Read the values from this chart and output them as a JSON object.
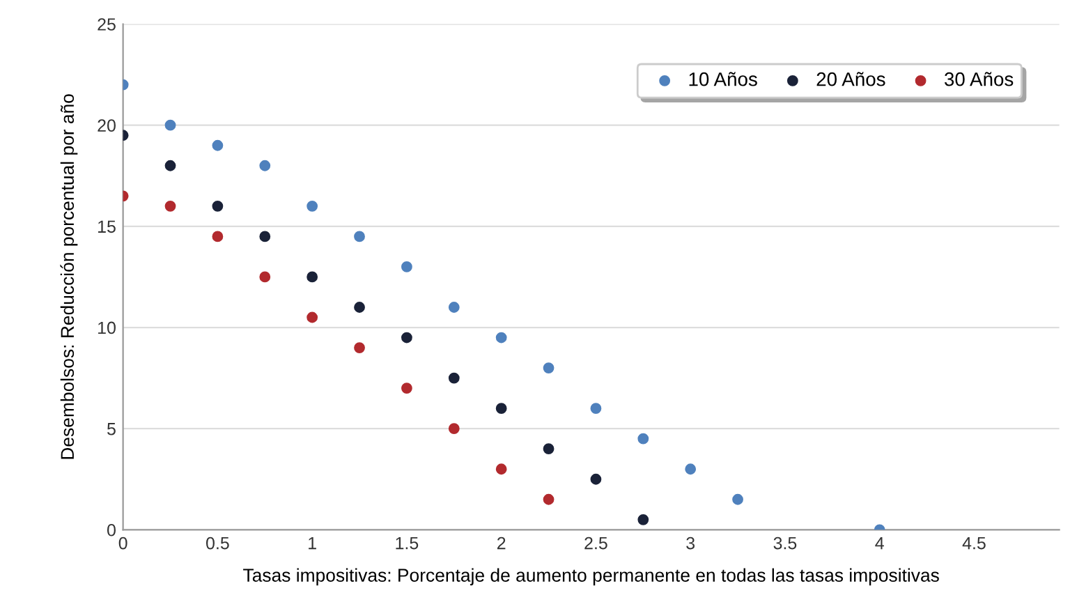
{
  "chart_data": {
    "type": "scatter",
    "xlabel": "Tasas impositivas: Porcentaje de aumento permanente en todas las tasas impositivas",
    "ylabel": "Desembolsos: Reducción porcentual por año",
    "series": [
      {
        "name": "10 Años",
        "color": "#4f81bd",
        "x": [
          0,
          0.25,
          0.5,
          0.75,
          1,
          1.25,
          1.5,
          1.75,
          2,
          2.25,
          2.5,
          2.75,
          3,
          3.25,
          4
        ],
        "values": [
          22,
          20,
          19,
          18,
          16,
          14.5,
          13,
          11,
          9.5,
          8,
          6,
          4.5,
          3,
          1.5,
          0
        ]
      },
      {
        "name": "20 Años",
        "color": "#1a2238",
        "x": [
          0,
          0.25,
          0.5,
          0.75,
          1,
          1.25,
          1.5,
          1.75,
          2,
          2.25,
          2.5,
          2.75
        ],
        "values": [
          19.5,
          18,
          16,
          14.5,
          12.5,
          11,
          9.5,
          7.5,
          6,
          4,
          2.5,
          0.5
        ]
      },
      {
        "name": "30 Años",
        "color": "#b22a2e",
        "x": [
          0,
          0.25,
          0.5,
          0.75,
          1,
          1.25,
          1.5,
          1.75,
          2,
          2.25
        ],
        "values": [
          16.5,
          16,
          14.5,
          12.5,
          10.5,
          9,
          7,
          5,
          3,
          1.5
        ]
      }
    ],
    "xlim": [
      0,
      4.95
    ],
    "xticks": [
      0,
      0.5,
      1,
      1.5,
      2,
      2.5,
      3,
      3.5,
      4,
      4.5
    ],
    "ylim": [
      0,
      25
    ],
    "yticks": [
      0,
      5,
      10,
      15,
      20,
      25
    ],
    "grid": "y",
    "legend": "top right",
    "marker": "circle"
  }
}
